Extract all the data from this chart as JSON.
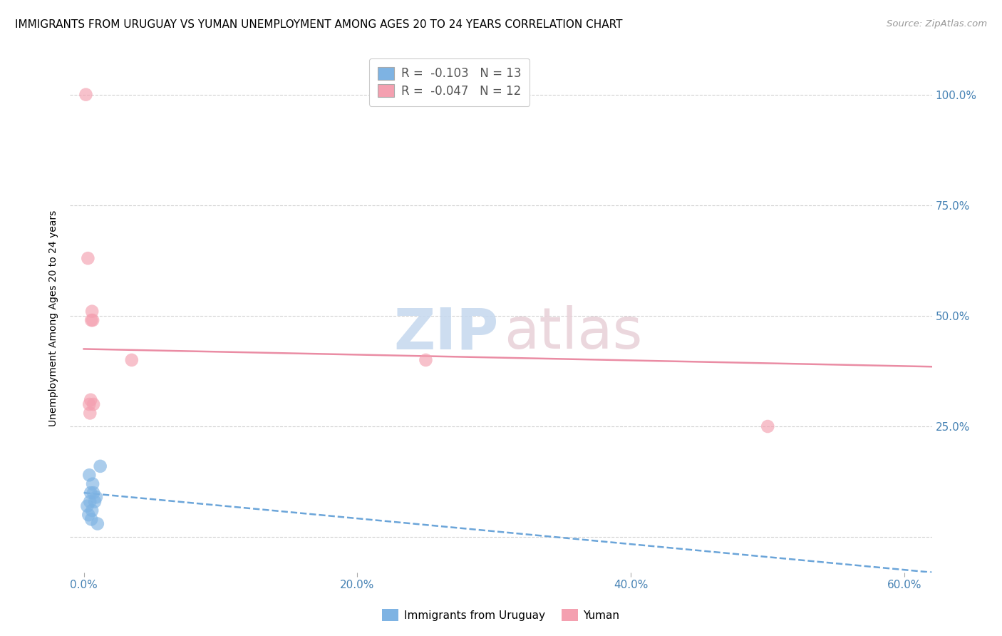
{
  "title": "IMMIGRANTS FROM URUGUAY VS YUMAN UNEMPLOYMENT AMONG AGES 20 TO 24 YEARS CORRELATION CHART",
  "source": "Source: ZipAtlas.com",
  "xlabel_ticks": [
    "0.0%",
    "20.0%",
    "40.0%",
    "60.0%"
  ],
  "xlabel_tick_vals": [
    0.0,
    20.0,
    40.0,
    60.0
  ],
  "ylabel_right_ticks": [
    "25.0%",
    "50.0%",
    "75.0%",
    "100.0%"
  ],
  "ylabel_right_tick_vals": [
    25.0,
    50.0,
    75.0,
    100.0
  ],
  "xlim": [
    -1.0,
    62.0
  ],
  "ylim": [
    -8.0,
    107.0
  ],
  "ylabel": "Unemployment Among Ages 20 to 24 years",
  "blue_series_label": "Immigrants from Uruguay",
  "pink_series_label": "Yuman",
  "blue_R": -0.103,
  "blue_N": 13,
  "pink_R": -0.047,
  "pink_N": 12,
  "blue_color": "#7EB3E3",
  "pink_color": "#F4A0B0",
  "blue_trend_color": "#5B9BD5",
  "pink_trend_color": "#E8809A",
  "blue_points_x": [
    0.25,
    0.35,
    0.4,
    0.45,
    0.5,
    0.55,
    0.6,
    0.65,
    0.7,
    0.8,
    0.9,
    1.0,
    1.2
  ],
  "blue_points_y": [
    7.0,
    5.0,
    14.0,
    8.0,
    10.0,
    4.0,
    6.0,
    12.0,
    10.0,
    8.0,
    9.0,
    3.0,
    16.0
  ],
  "pink_points_x": [
    0.15,
    0.3,
    0.4,
    0.55,
    0.6,
    0.65,
    0.7,
    3.5,
    25.0,
    50.0,
    0.45,
    0.5
  ],
  "pink_points_y": [
    100.0,
    63.0,
    30.0,
    49.0,
    51.0,
    49.0,
    30.0,
    40.0,
    40.0,
    25.0,
    28.0,
    31.0
  ],
  "blue_trend_x0": 0.0,
  "blue_trend_y0": 10.0,
  "blue_trend_x1": 62.0,
  "blue_trend_y1": -8.0,
  "pink_trend_x0": 0.0,
  "pink_trend_y0": 42.5,
  "pink_trend_x1": 62.0,
  "pink_trend_y1": 38.5,
  "grid_color": "#CCCCCC",
  "background_color": "#FFFFFF",
  "title_fontsize": 11,
  "axis_tick_color": "#4682B4",
  "right_axis_color": "#4682B4"
}
